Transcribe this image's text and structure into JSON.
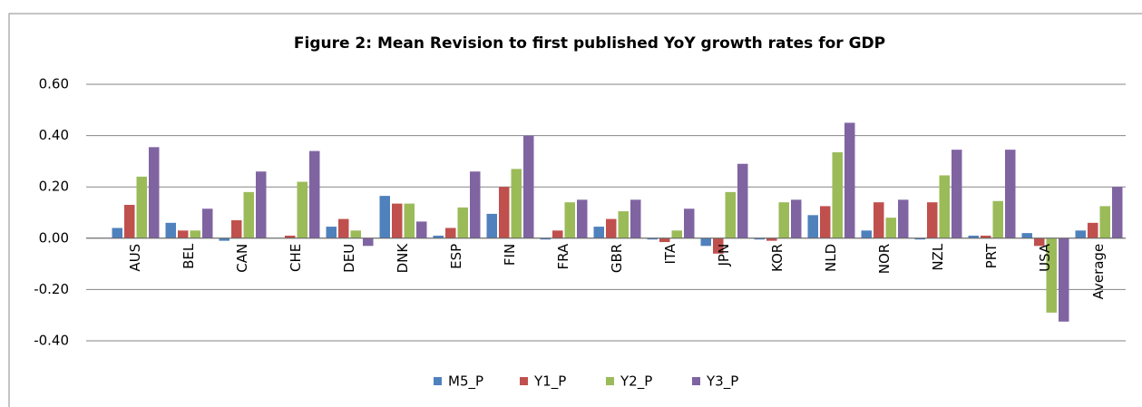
{
  "chart_data": {
    "type": "bar",
    "title": "Figure 2:  Mean Revision to first published YoY growth rates for GDP",
    "categories": [
      "AUS",
      "BEL",
      "CAN",
      "CHE",
      "DEU",
      "DNK",
      "ESP",
      "FIN",
      "FRA",
      "GBR",
      "ITA",
      "JPN",
      "KOR",
      "NLD",
      "NOR",
      "NZL",
      "PRT",
      "USA",
      "Average"
    ],
    "series": [
      {
        "name": "M5_P",
        "color": "#4f81bd",
        "values": [
          0.04,
          0.06,
          -0.01,
          0.0,
          0.045,
          0.165,
          0.01,
          0.095,
          -0.005,
          0.045,
          -0.005,
          -0.03,
          -0.005,
          0.09,
          0.03,
          -0.005,
          0.01,
          0.02,
          0.03
        ]
      },
      {
        "name": "Y1_P",
        "color": "#c0504d",
        "values": [
          0.13,
          0.03,
          0.07,
          0.01,
          0.075,
          0.135,
          0.04,
          0.2,
          0.03,
          0.075,
          -0.015,
          -0.06,
          -0.01,
          0.125,
          0.14,
          0.14,
          0.01,
          -0.03,
          0.06
        ]
      },
      {
        "name": "Y2_P",
        "color": "#9bbb59",
        "values": [
          0.24,
          0.03,
          0.18,
          0.22,
          0.03,
          0.135,
          0.12,
          0.27,
          0.14,
          0.105,
          0.03,
          0.18,
          0.14,
          0.335,
          0.08,
          0.245,
          0.145,
          -0.29,
          0.125
        ]
      },
      {
        "name": "Y3_P",
        "color": "#8064a2",
        "values": [
          0.355,
          0.115,
          0.26,
          0.34,
          -0.03,
          0.065,
          0.26,
          0.4,
          0.15,
          0.15,
          0.115,
          0.29,
          0.15,
          0.45,
          0.15,
          0.345,
          0.345,
          -0.325,
          0.2
        ]
      }
    ],
    "ylim": [
      -0.4,
      0.6
    ],
    "yticks": [
      {
        "value": -0.4,
        "label": "-0.40"
      },
      {
        "value": -0.2,
        "label": "-0.20"
      },
      {
        "value": 0,
        "label": "0.00"
      },
      {
        "value": 0.2,
        "label": "0.20"
      },
      {
        "value": 0.4,
        "label": "0.40"
      },
      {
        "value": 0.6,
        "label": "0.60"
      }
    ],
    "grid": true,
    "legend": "bottom"
  }
}
